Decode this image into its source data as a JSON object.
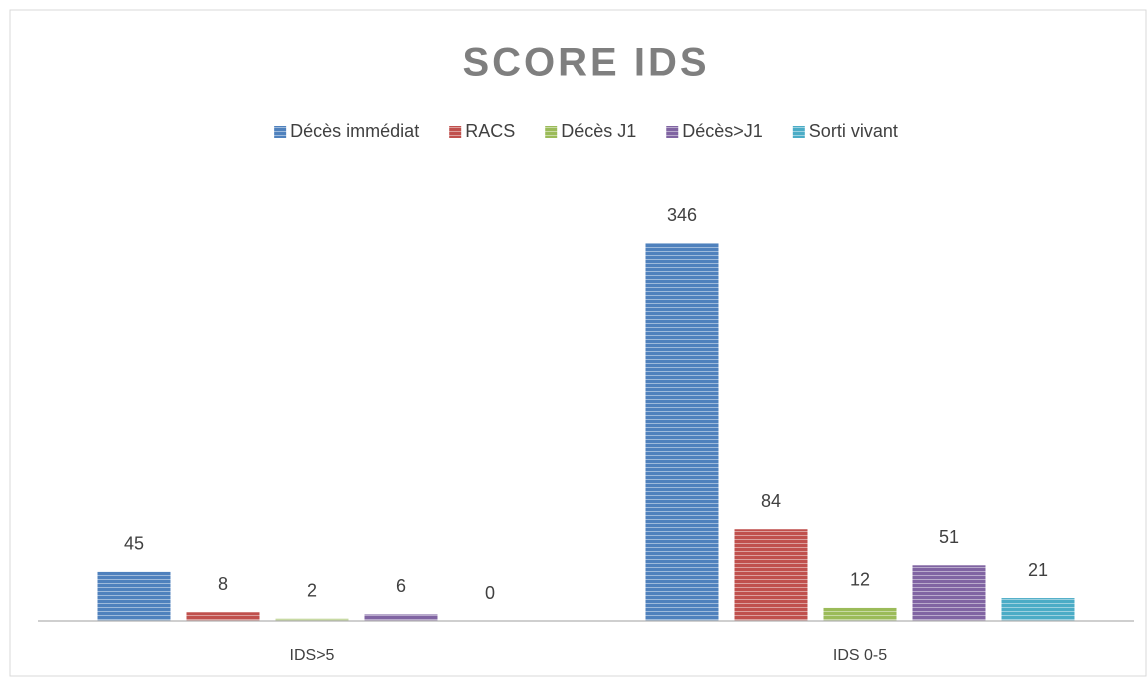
{
  "chart_data": {
    "type": "bar",
    "title": "SCORE IDS",
    "categories": [
      "IDS>5",
      "IDS 0-5"
    ],
    "series": [
      {
        "name": "Décès immédiat",
        "color": "#4f81bd",
        "values": [
          45,
          346
        ]
      },
      {
        "name": "RACS",
        "color": "#c0504d",
        "values": [
          8,
          84
        ]
      },
      {
        "name": "Décès J1",
        "color": "#9bbb59",
        "values": [
          2,
          12
        ]
      },
      {
        "name": "Décès>J1",
        "color": "#8064a2",
        "values": [
          6,
          51
        ]
      },
      {
        "name": "Sorti vivant",
        "color": "#4bacc6",
        "values": [
          0,
          21
        ]
      }
    ],
    "legend": "top"
  }
}
